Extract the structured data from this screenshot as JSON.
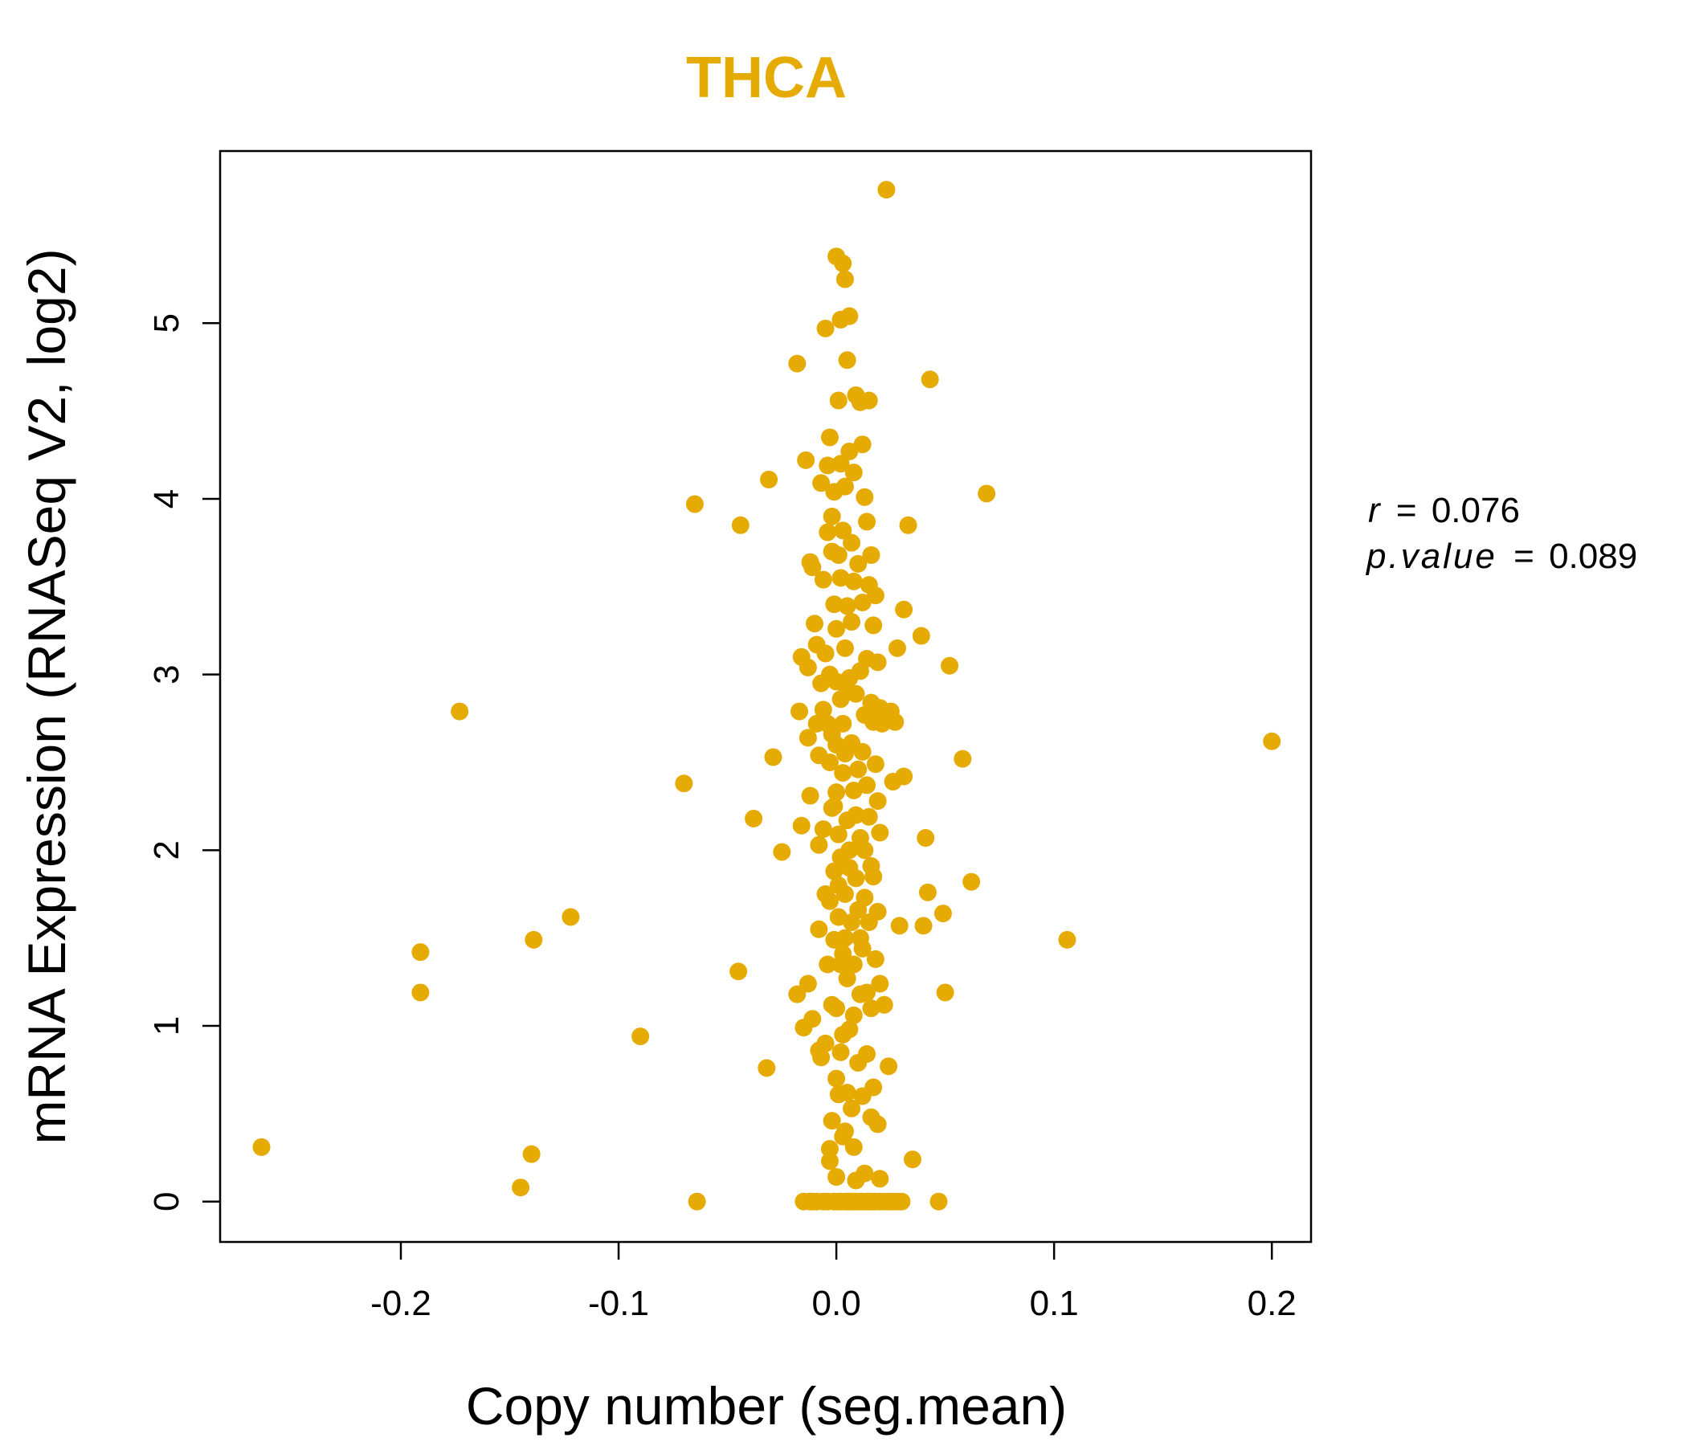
{
  "colors": {
    "accent": "#E6AB02",
    "axis": "#000000",
    "background": "#FFFFFF"
  },
  "chart_data": {
    "type": "scatter",
    "title": "THCA",
    "xlabel": "Copy number (seg.mean)",
    "ylabel": "mRNA Expression (RNASeq V2, log2)",
    "xlim": [
      -0.283,
      0.218
    ],
    "ylim": [
      -0.23,
      5.98
    ],
    "xticks": [
      -0.2,
      -0.1,
      0.0,
      0.1,
      0.2
    ],
    "xtick_labels": [
      "-0.2",
      "-0.1",
      "0.0",
      "0.1",
      "0.2"
    ],
    "yticks": [
      0,
      1,
      2,
      3,
      4,
      5
    ],
    "ytick_labels": [
      "0",
      "1",
      "2",
      "3",
      "4",
      "5"
    ],
    "annotations": {
      "r_label": "r",
      "r_value": "0.076",
      "p_label": "p.value",
      "p_value": "0.089",
      "equals": "="
    },
    "points": [
      [
        -0.264,
        0.31
      ],
      [
        -0.191,
        1.42
      ],
      [
        -0.191,
        1.19
      ],
      [
        -0.173,
        2.79
      ],
      [
        -0.145,
        0.08
      ],
      [
        -0.14,
        0.27
      ],
      [
        -0.139,
        1.49
      ],
      [
        -0.122,
        1.62
      ],
      [
        -0.09,
        0.94
      ],
      [
        -0.07,
        2.38
      ],
      [
        -0.065,
        3.97
      ],
      [
        -0.064,
        0.0
      ],
      [
        -0.044,
        3.85
      ],
      [
        -0.045,
        1.31
      ],
      [
        -0.038,
        2.18
      ],
      [
        -0.032,
        0.76
      ],
      [
        -0.031,
        4.11
      ],
      [
        -0.029,
        2.53
      ],
      [
        -0.025,
        1.99
      ],
      [
        -0.018,
        4.77
      ],
      [
        -0.018,
        1.18
      ],
      [
        -0.017,
        2.79
      ],
      [
        -0.016,
        3.1
      ],
      [
        -0.016,
        2.14
      ],
      [
        -0.015,
        0.99
      ],
      [
        -0.014,
        4.22
      ],
      [
        -0.013,
        3.04
      ],
      [
        -0.013,
        2.64
      ],
      [
        -0.013,
        1.24
      ],
      [
        -0.012,
        3.64
      ],
      [
        -0.012,
        2.31
      ],
      [
        -0.011,
        3.61
      ],
      [
        -0.011,
        0.0
      ],
      [
        -0.011,
        1.04
      ],
      [
        -0.01,
        3.29
      ],
      [
        -0.009,
        2.72
      ],
      [
        -0.009,
        3.17
      ],
      [
        -0.009,
        0.0
      ],
      [
        -0.008,
        2.03
      ],
      [
        -0.008,
        2.54
      ],
      [
        -0.008,
        1.55
      ],
      [
        -0.008,
        0.86
      ],
      [
        -0.007,
        4.09
      ],
      [
        -0.007,
        0.82
      ],
      [
        -0.007,
        2.95
      ],
      [
        -0.006,
        2.8
      ],
      [
        -0.006,
        2.12
      ],
      [
        -0.006,
        3.54
      ],
      [
        -0.005,
        4.97
      ],
      [
        -0.005,
        1.75
      ],
      [
        -0.005,
        0.9
      ],
      [
        -0.005,
        3.12
      ],
      [
        -0.004,
        2.72
      ],
      [
        -0.004,
        1.35
      ],
      [
        -0.004,
        0.0
      ],
      [
        -0.004,
        3.81
      ],
      [
        -0.004,
        4.19
      ],
      [
        -0.003,
        4.35
      ],
      [
        -0.003,
        1.71
      ],
      [
        -0.003,
        2.5
      ],
      [
        -0.003,
        3.0
      ],
      [
        -0.003,
        0.3
      ],
      [
        -0.003,
        0.23
      ],
      [
        -0.002,
        1.12
      ],
      [
        -0.002,
        2.24
      ],
      [
        -0.002,
        3.9
      ],
      [
        -0.002,
        0.46
      ],
      [
        -0.002,
        2.66
      ],
      [
        -0.001,
        1.88
      ],
      [
        -0.001,
        3.4
      ],
      [
        -0.001,
        4.04
      ],
      [
        -0.001,
        0.0
      ],
      [
        -0.001,
        1.49
      ],
      [
        0.0,
        5.38
      ],
      [
        0.0,
        2.33
      ],
      [
        0.0,
        0.14
      ],
      [
        0.0,
        3.26
      ],
      [
        0.0,
        1.1
      ],
      [
        0.0,
        2.96
      ],
      [
        0.001,
        4.56
      ],
      [
        0.001,
        1.62
      ],
      [
        0.001,
        3.68
      ],
      [
        0.001,
        2.09
      ],
      [
        0.001,
        0.61
      ],
      [
        0.001,
        0.0
      ],
      [
        0.002,
        5.02
      ],
      [
        0.002,
        2.86
      ],
      [
        0.002,
        4.2
      ],
      [
        0.002,
        1.96
      ],
      [
        0.002,
        3.55
      ],
      [
        0.002,
        0.85
      ],
      [
        0.003,
        5.34
      ],
      [
        0.003,
        2.44
      ],
      [
        0.003,
        3.82
      ],
      [
        0.003,
        1.41
      ],
      [
        0.003,
        0.37
      ],
      [
        0.003,
        2.72
      ],
      [
        0.004,
        5.25
      ],
      [
        0.004,
        4.07
      ],
      [
        0.004,
        3.15
      ],
      [
        0.004,
        1.75
      ],
      [
        0.004,
        0.0
      ],
      [
        0.004,
        2.55
      ],
      [
        0.005,
        4.79
      ],
      [
        0.005,
        2.17
      ],
      [
        0.005,
        3.39
      ],
      [
        0.005,
        1.27
      ],
      [
        0.005,
        0.62
      ],
      [
        0.005,
        0.0
      ],
      [
        0.006,
        5.04
      ],
      [
        0.006,
        4.27
      ],
      [
        0.006,
        2.98
      ],
      [
        0.006,
        1.9
      ],
      [
        0.006,
        0.98
      ],
      [
        0.007,
        3.75
      ],
      [
        0.007,
        2.61
      ],
      [
        0.007,
        1.59
      ],
      [
        0.007,
        0.53
      ],
      [
        0.007,
        0.0
      ],
      [
        0.008,
        4.15
      ],
      [
        0.008,
        3.53
      ],
      [
        0.008,
        2.34
      ],
      [
        0.008,
        1.06
      ],
      [
        0.008,
        0.31
      ],
      [
        0.009,
        4.59
      ],
      [
        0.009,
        2.89
      ],
      [
        0.009,
        1.84
      ],
      [
        0.009,
        0.12
      ],
      [
        0.009,
        0.0
      ],
      [
        0.01,
        3.63
      ],
      [
        0.01,
        2.46
      ],
      [
        0.01,
        1.66
      ],
      [
        0.01,
        0.79
      ],
      [
        0.011,
        4.55
      ],
      [
        0.011,
        3.02
      ],
      [
        0.011,
        2.07
      ],
      [
        0.011,
        1.18
      ],
      [
        0.011,
        0.0
      ],
      [
        0.012,
        4.31
      ],
      [
        0.012,
        3.41
      ],
      [
        0.012,
        2.56
      ],
      [
        0.012,
        1.44
      ],
      [
        0.012,
        0.6
      ],
      [
        0.013,
        4.01
      ],
      [
        0.013,
        2.77
      ],
      [
        0.013,
        1.73
      ],
      [
        0.013,
        0.16
      ],
      [
        0.014,
        3.87
      ],
      [
        0.014,
        3.09
      ],
      [
        0.014,
        2.37
      ],
      [
        0.014,
        1.19
      ],
      [
        0.014,
        0.84
      ],
      [
        0.015,
        4.56
      ],
      [
        0.015,
        3.51
      ],
      [
        0.015,
        2.19
      ],
      [
        0.015,
        1.59
      ],
      [
        0.015,
        0.0
      ],
      [
        0.016,
        3.68
      ],
      [
        0.016,
        2.84
      ],
      [
        0.016,
        1.91
      ],
      [
        0.016,
        1.1
      ],
      [
        0.016,
        0.48
      ],
      [
        0.017,
        3.28
      ],
      [
        0.017,
        2.73
      ],
      [
        0.017,
        1.85
      ],
      [
        0.017,
        0.65
      ],
      [
        0.018,
        3.45
      ],
      [
        0.018,
        2.49
      ],
      [
        0.018,
        1.38
      ],
      [
        0.018,
        0.0
      ],
      [
        0.019,
        3.07
      ],
      [
        0.019,
        2.28
      ],
      [
        0.019,
        1.65
      ],
      [
        0.019,
        0.44
      ],
      [
        0.02,
        2.81
      ],
      [
        0.02,
        2.1
      ],
      [
        0.02,
        1.24
      ],
      [
        0.02,
        0.13
      ],
      [
        0.021,
        2.72
      ],
      [
        0.022,
        1.12
      ],
      [
        0.023,
        5.76
      ],
      [
        0.024,
        0.77
      ],
      [
        0.025,
        2.79
      ],
      [
        0.026,
        2.39
      ],
      [
        0.027,
        2.73
      ],
      [
        0.028,
        3.15
      ],
      [
        0.029,
        1.57
      ],
      [
        0.03,
        0.0
      ],
      [
        0.031,
        3.37
      ],
      [
        0.031,
        2.42
      ],
      [
        0.033,
        3.85
      ],
      [
        0.035,
        0.24
      ],
      [
        0.039,
        3.22
      ],
      [
        0.04,
        1.57
      ],
      [
        0.041,
        2.07
      ],
      [
        0.042,
        1.76
      ],
      [
        0.043,
        4.68
      ],
      [
        0.047,
        0.0
      ],
      [
        0.049,
        1.64
      ],
      [
        0.05,
        1.19
      ],
      [
        0.052,
        3.05
      ],
      [
        0.058,
        2.52
      ],
      [
        0.062,
        1.82
      ],
      [
        0.069,
        4.03
      ],
      [
        0.106,
        1.49
      ],
      [
        0.2,
        2.62
      ],
      [
        -0.015,
        0.0
      ],
      [
        -0.012,
        0.0
      ],
      [
        -0.006,
        0.0
      ],
      [
        0.002,
        0.0
      ],
      [
        0.006,
        0.0
      ],
      [
        0.008,
        0.0
      ],
      [
        0.012,
        0.0
      ],
      [
        0.014,
        0.0
      ],
      [
        0.016,
        0.0
      ],
      [
        0.02,
        0.0
      ],
      [
        0.022,
        0.0
      ],
      [
        0.024,
        0.0
      ],
      [
        0.026,
        0.0
      ],
      [
        0.028,
        0.0
      ],
      [
        0.0,
        0.7
      ],
      [
        0.002,
        1.35
      ],
      [
        0.0,
        2.6
      ],
      [
        -0.002,
        3.7
      ],
      [
        0.004,
        1.5
      ],
      [
        0.006,
        2.0
      ],
      [
        0.003,
        0.95
      ],
      [
        0.001,
        1.8
      ],
      [
        -0.001,
        2.25
      ],
      [
        0.005,
        2.9
      ],
      [
        0.007,
        3.3
      ],
      [
        0.009,
        2.2
      ],
      [
        0.011,
        1.5
      ],
      [
        0.013,
        2.0
      ],
      [
        0.008,
        1.35
      ],
      [
        0.004,
        0.4
      ]
    ]
  }
}
